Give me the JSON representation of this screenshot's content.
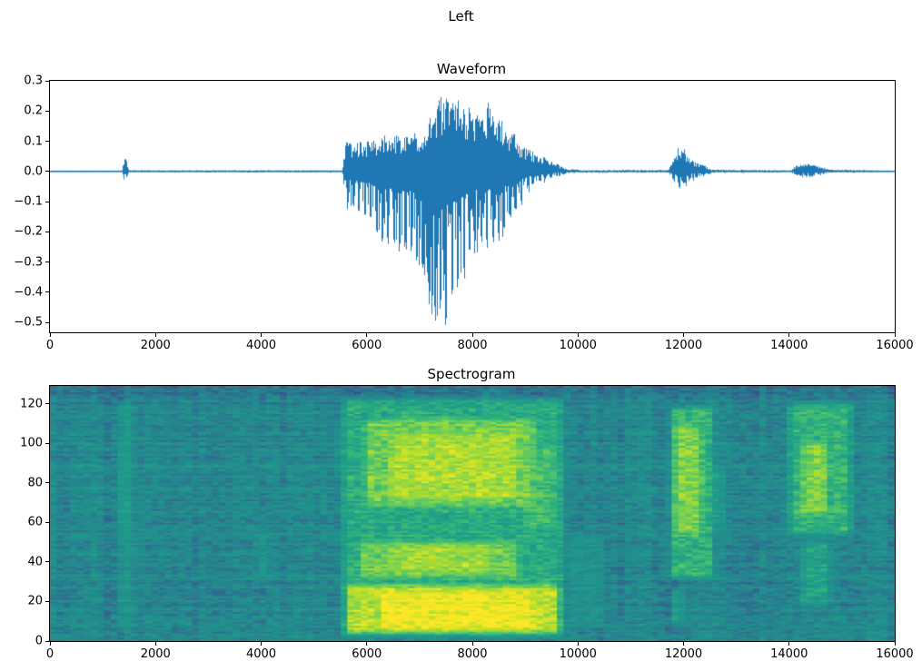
{
  "figure": {
    "suptitle": "Left",
    "background": "#ffffff",
    "text_color": "#000000"
  },
  "chart_data": [
    {
      "type": "line",
      "title": "Waveform",
      "xlabel": "",
      "ylabel": "",
      "xlim": [
        0,
        16000
      ],
      "ylim": [
        -0.533,
        0.3
      ],
      "x_ticks": {
        "values": [
          0,
          2000,
          4000,
          6000,
          8000,
          10000,
          12000,
          14000,
          16000
        ],
        "labels": [
          "0",
          "2000",
          "4000",
          "6000",
          "8000",
          "10000",
          "12000",
          "14000",
          "16000"
        ]
      },
      "y_ticks": {
        "values": [
          0.3,
          0.2,
          0.1,
          0.0,
          -0.1,
          -0.2,
          -0.3,
          -0.4,
          -0.5
        ],
        "labels": [
          "0.3",
          "0.2",
          "0.1",
          "0.0",
          "−0.1",
          "−0.2",
          "−0.3",
          "−0.4",
          "−0.5"
        ]
      },
      "line_color": "#1f77b4",
      "pitch_period": 110,
      "envelope_points": [
        [
          0,
          0.003,
          0.003
        ],
        [
          1370,
          0.003,
          0.003
        ],
        [
          1400,
          0.035,
          0.03
        ],
        [
          1430,
          0.05,
          0.045
        ],
        [
          1470,
          0.025,
          0.02
        ],
        [
          1510,
          0.004,
          0.004
        ],
        [
          5540,
          0.004,
          0.004
        ],
        [
          5600,
          0.1,
          0.13
        ],
        [
          5750,
          0.09,
          0.12
        ],
        [
          5900,
          0.1,
          0.16
        ],
        [
          6100,
          0.11,
          0.18
        ],
        [
          6300,
          0.12,
          0.24
        ],
        [
          6600,
          0.13,
          0.28
        ],
        [
          6900,
          0.13,
          0.3
        ],
        [
          7100,
          0.16,
          0.38
        ],
        [
          7250,
          0.2,
          0.5
        ],
        [
          7450,
          0.26,
          0.53
        ],
        [
          7600,
          0.27,
          0.48
        ],
        [
          7750,
          0.24,
          0.42
        ],
        [
          7900,
          0.21,
          0.33
        ],
        [
          8100,
          0.22,
          0.27
        ],
        [
          8300,
          0.23,
          0.26
        ],
        [
          8500,
          0.19,
          0.24
        ],
        [
          8700,
          0.15,
          0.18
        ],
        [
          8900,
          0.1,
          0.12
        ],
        [
          9100,
          0.07,
          0.07
        ],
        [
          9300,
          0.055,
          0.05
        ],
        [
          9500,
          0.04,
          0.03
        ],
        [
          9650,
          0.02,
          0.015
        ],
        [
          9800,
          0.008,
          0.008
        ],
        [
          10100,
          0.005,
          0.005
        ],
        [
          11720,
          0.005,
          0.005
        ],
        [
          11800,
          0.05,
          0.04
        ],
        [
          11900,
          0.08,
          0.06
        ],
        [
          11980,
          0.09,
          0.07
        ],
        [
          12080,
          0.055,
          0.045
        ],
        [
          12200,
          0.035,
          0.03
        ],
        [
          12400,
          0.02,
          0.015
        ],
        [
          12550,
          0.006,
          0.006
        ],
        [
          14050,
          0.004,
          0.004
        ],
        [
          14150,
          0.028,
          0.022
        ],
        [
          14300,
          0.032,
          0.026
        ],
        [
          14450,
          0.03,
          0.024
        ],
        [
          14600,
          0.018,
          0.014
        ],
        [
          14750,
          0.006,
          0.006
        ],
        [
          16000,
          0.003,
          0.003
        ]
      ]
    },
    {
      "type": "heatmap",
      "title": "Spectrogram",
      "xlabel": "",
      "ylabel": "",
      "xlim": [
        0,
        16000
      ],
      "ylim": [
        0,
        129
      ],
      "x_ticks": {
        "values": [
          0,
          2000,
          4000,
          6000,
          8000,
          10000,
          12000,
          14000,
          16000
        ],
        "labels": [
          "0",
          "2000",
          "4000",
          "6000",
          "8000",
          "10000",
          "12000",
          "14000",
          "16000"
        ]
      },
      "y_ticks": {
        "values": [
          0,
          20,
          40,
          60,
          80,
          100,
          120
        ],
        "labels": [
          "0",
          "20",
          "40",
          "60",
          "80",
          "100",
          "120"
        ]
      },
      "colormap": "viridis",
      "colormap_stops": [
        "#440154",
        "#482878",
        "#3e4989",
        "#31688e",
        "#26828e",
        "#21918c",
        "#1f9e89",
        "#35b779",
        "#6ece58",
        "#b5de2b",
        "#fde725"
      ],
      "time_bins": 125,
      "freq_bins": 129,
      "background_level": 0.43,
      "regions": [
        {
          "t": [
            1260,
            1560
          ],
          "f": [
            3,
            122
          ],
          "v": 0.6
        },
        {
          "t": [
            1300,
            1500
          ],
          "f": [
            55,
            105
          ],
          "v": 0.68
        },
        {
          "t": [
            1560,
            1780
          ],
          "f": [
            15,
            85
          ],
          "v": 0.5
        },
        {
          "t": [
            3850,
            4200
          ],
          "f": [
            28,
            58
          ],
          "v": 0.5
        },
        {
          "t": [
            5480,
            9800
          ],
          "f": [
            0,
            124
          ],
          "v": 0.64
        },
        {
          "t": [
            5520,
            5720
          ],
          "f": [
            0,
            120
          ],
          "v": 0.72
        },
        {
          "t": [
            5560,
            9700
          ],
          "f": [
            2,
            30
          ],
          "v": 0.9
        },
        {
          "t": [
            6200,
            9200
          ],
          "f": [
            4,
            26
          ],
          "v": 0.99
        },
        {
          "t": [
            5800,
            8950
          ],
          "f": [
            30,
            52
          ],
          "v": 0.8
        },
        {
          "t": [
            6400,
            8400
          ],
          "f": [
            33,
            50
          ],
          "v": 0.87
        },
        {
          "t": [
            5900,
            9250
          ],
          "f": [
            66,
            114
          ],
          "v": 0.8
        },
        {
          "t": [
            6400,
            8900
          ],
          "f": [
            70,
            106
          ],
          "v": 0.88
        },
        {
          "t": [
            8950,
            9650
          ],
          "f": [
            55,
            100
          ],
          "v": 0.72
        },
        {
          "t": [
            9750,
            10550
          ],
          "f": [
            5,
            55
          ],
          "v": 0.5
        },
        {
          "t": [
            11680,
            12620
          ],
          "f": [
            30,
            120
          ],
          "v": 0.68
        },
        {
          "t": [
            11780,
            12400
          ],
          "f": [
            52,
            110
          ],
          "v": 0.82
        },
        {
          "t": [
            11760,
            12020
          ],
          "f": [
            6,
            28
          ],
          "v": 0.7
        },
        {
          "t": [
            12400,
            12850
          ],
          "f": [
            55,
            88
          ],
          "v": 0.56
        },
        {
          "t": [
            13920,
            15260
          ],
          "f": [
            52,
            122
          ],
          "v": 0.68
        },
        {
          "t": [
            14180,
            14780
          ],
          "f": [
            62,
            102
          ],
          "v": 0.82
        },
        {
          "t": [
            14150,
            14850
          ],
          "f": [
            16,
            52
          ],
          "v": 0.6
        }
      ]
    }
  ]
}
